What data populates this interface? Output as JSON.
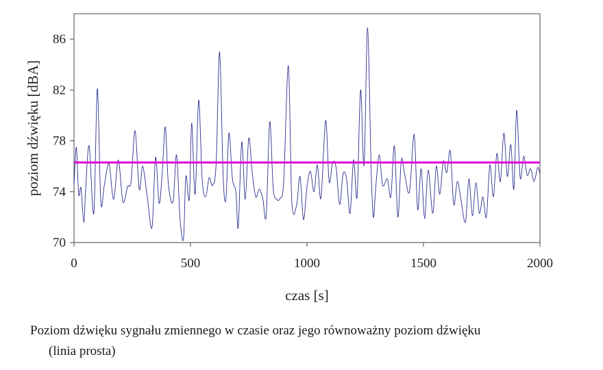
{
  "caption": {
    "line1": "Poziom dźwięku sygnału zmiennego w czasie oraz jego równoważny poziom dźwięku",
    "line2": "(linia prosta)"
  },
  "chart_data": {
    "type": "line",
    "xlabel": "czas [s]",
    "ylabel": "poziom dźwięku  [dBA]",
    "xlim": [
      0,
      2000
    ],
    "ylim": [
      70,
      88
    ],
    "xticks": [
      0,
      500,
      1000,
      1500,
      2000
    ],
    "yticks": [
      70,
      74,
      78,
      82,
      86
    ],
    "grid": false,
    "legend": "none",
    "colors": {
      "signal": "#2b2f8f",
      "equivalent": "#e000d8",
      "axis": "#444444"
    },
    "series": [
      {
        "x": [
          0,
          10,
          20,
          30,
          42,
          50,
          65,
          85,
          100,
          115,
          130,
          150,
          170,
          190,
          210,
          230,
          245,
          262,
          280,
          295,
          315,
          335,
          350,
          365,
          378,
          392,
          405,
          425,
          440,
          455,
          470,
          480,
          495,
          505,
          520,
          535,
          550,
          565,
          580,
          595,
          610,
          625,
          640,
          652,
          665,
          680,
          695,
          705,
          720,
          735,
          750,
          765,
          780,
          795,
          810,
          825,
          840,
          855,
          870,
          885,
          900,
          920,
          935,
          955,
          970,
          985,
          1000,
          1015,
          1030,
          1045,
          1060,
          1080,
          1095,
          1110,
          1125,
          1140,
          1155,
          1170,
          1185,
          1200,
          1215,
          1230,
          1245,
          1260,
          1275,
          1285,
          1295,
          1310,
          1325,
          1345,
          1360,
          1375,
          1390,
          1405,
          1420,
          1440,
          1460,
          1475,
          1490,
          1505,
          1520,
          1540,
          1555,
          1570,
          1585,
          1600,
          1615,
          1630,
          1645,
          1660,
          1680,
          1695,
          1710,
          1725,
          1740,
          1755,
          1770,
          1785,
          1800,
          1815,
          1830,
          1845,
          1860,
          1875,
          1888,
          1900,
          1915,
          1930,
          1945,
          1960,
          1975,
          1990,
          2000
        ],
        "values": [
          74.5,
          77.5,
          73.8,
          74.3,
          71.6,
          74.2,
          77.6,
          72.3,
          82.1,
          73.2,
          74.5,
          76.2,
          73.4,
          76.5,
          73.2,
          74.4,
          74.8,
          78.8,
          74.2,
          76.0,
          73.5,
          71.2,
          76.7,
          73.1,
          75.3,
          79.1,
          74.6,
          73.2,
          76.9,
          71.9,
          70.3,
          75.2,
          73.4,
          79.4,
          73.8,
          81.2,
          75.0,
          73.6,
          75.1,
          74.5,
          76.2,
          85.0,
          75.3,
          73.4,
          78.6,
          75.0,
          74.0,
          71.2,
          77.9,
          73.4,
          78.2,
          75.5,
          73.6,
          74.2,
          73.5,
          72.1,
          79.5,
          74.3,
          73.4,
          73.5,
          74.8,
          83.9,
          73.2,
          72.9,
          75.2,
          71.8,
          74.4,
          75.6,
          74.0,
          76.1,
          73.5,
          79.6,
          74.8,
          76.3,
          75.9,
          73.0,
          75.4,
          75.0,
          72.3,
          76.5,
          73.6,
          82.0,
          76.1,
          86.9,
          76.0,
          72.0,
          74.3,
          76.9,
          74.5,
          75.0,
          73.6,
          77.6,
          72.0,
          76.5,
          75.3,
          74.0,
          78.5,
          72.6,
          75.8,
          71.9,
          75.7,
          72.3,
          76.0,
          73.8,
          76.4,
          75.5,
          77.2,
          73.0,
          74.8,
          73.5,
          71.6,
          75.0,
          72.1,
          74.7,
          72.3,
          73.6,
          72.0,
          76.1,
          73.6,
          77.0,
          74.8,
          78.6,
          75.2,
          77.7,
          74.2,
          80.4,
          75.1,
          76.8,
          75.3,
          75.8,
          74.8,
          75.9,
          75.4
        ]
      },
      {
        "x": [
          0,
          2000
        ],
        "values": [
          76.3,
          76.3
        ]
      }
    ]
  }
}
